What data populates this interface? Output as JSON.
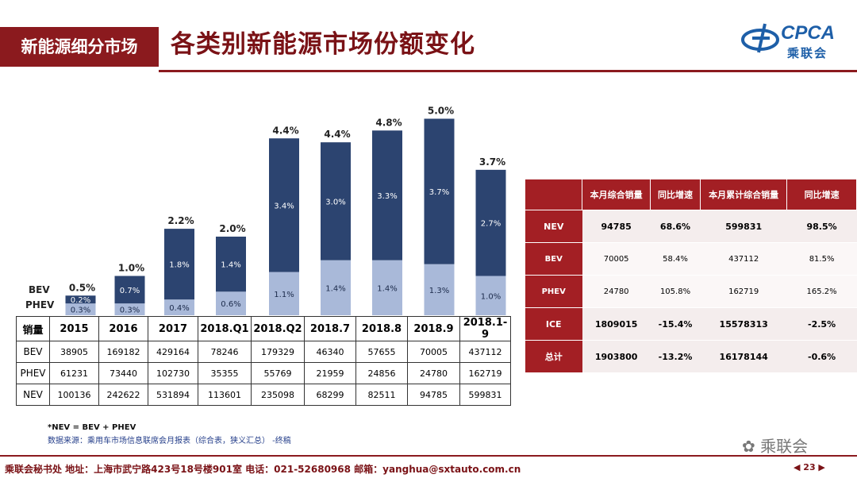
{
  "header": {
    "section": "新能源细分市场",
    "title": "各类别新能源市场份额变化",
    "logo_text": "CPCA",
    "logo_cn": "乘联会"
  },
  "chart_data": {
    "type": "bar",
    "stacked": true,
    "categories": [
      "2015",
      "2016",
      "2017",
      "2018.Q1",
      "2018.Q2",
      "2018.7",
      "2018.8",
      "2018.9",
      "2018.1-9"
    ],
    "series": [
      {
        "name": "PHEV",
        "values": [
          0.3,
          0.3,
          0.4,
          0.6,
          1.1,
          1.4,
          1.4,
          1.3,
          1.0
        ],
        "labels": [
          "0.3%",
          "0.3%",
          "0.4%",
          "0.6%",
          "1.1%",
          "1.4%",
          "1.4%",
          "1.3%",
          "1.0%"
        ],
        "color": "#a9b9d9"
      },
      {
        "name": "BEV",
        "values": [
          0.2,
          0.7,
          1.8,
          1.4,
          3.4,
          3.0,
          3.3,
          3.7,
          2.7
        ],
        "labels": [
          "0.2%",
          "0.7%",
          "1.8%",
          "1.4%",
          "3.4%",
          "3.0%",
          "3.3%",
          "3.7%",
          "2.7%"
        ],
        "color": "#2c4470"
      }
    ],
    "totals": [
      0.5,
      1.0,
      2.2,
      2.0,
      4.4,
      4.4,
      4.8,
      5.0,
      3.7
    ],
    "total_labels": [
      "0.5%",
      "1.0%",
      "2.2%",
      "2.0%",
      "4.4%",
      "4.4%",
      "4.8%",
      "5.0%",
      "3.7%"
    ],
    "legend_bev": "BEV",
    "legend_phev": "PHEV"
  },
  "volume_table": {
    "corner": "销量",
    "columns": [
      "2015",
      "2016",
      "2017",
      "2018.Q1",
      "2018.Q2",
      "2018.7",
      "2018.8",
      "2018.9",
      "2018.1-9"
    ],
    "rows": [
      {
        "label": "BEV",
        "values": [
          "38905",
          "169182",
          "429164",
          "78246",
          "179329",
          "46340",
          "57655",
          "70005",
          "437112"
        ]
      },
      {
        "label": "PHEV",
        "values": [
          "61231",
          "73440",
          "102730",
          "35355",
          "55769",
          "21959",
          "24856",
          "24780",
          "162719"
        ]
      },
      {
        "label": "NEV",
        "values": [
          "100136",
          "242622",
          "531894",
          "113601",
          "235098",
          "68299",
          "82511",
          "94785",
          "599831"
        ]
      }
    ]
  },
  "side_table": {
    "headers": [
      "",
      "本月综合销量",
      "同比增速",
      "本月累计综合销量",
      "同比增速"
    ],
    "rows": [
      {
        "label": "NEV",
        "values": [
          "94785",
          "68.6%",
          "599831",
          "98.5%"
        ],
        "bold": true
      },
      {
        "label": "BEV",
        "values": [
          "70005",
          "58.4%",
          "437112",
          "81.5%"
        ],
        "bold": false
      },
      {
        "label": "PHEV",
        "values": [
          "24780",
          "105.8%",
          "162719",
          "165.2%"
        ],
        "bold": false
      },
      {
        "label": "ICE",
        "values": [
          "1809015",
          "-15.4%",
          "15578313",
          "-2.5%"
        ],
        "bold": true
      },
      {
        "label": "总计",
        "values": [
          "1903800",
          "-13.2%",
          "16178144",
          "-0.6%"
        ],
        "bold": true
      }
    ]
  },
  "notes": {
    "formula": "*NEV = BEV + PHEV",
    "source": "数据来源：乘用车市场信息联席会月报表（综合表，狭义汇总） -终稿"
  },
  "watermark": "乘联会",
  "footer": {
    "text": "乘联会秘书处   地址：上海市武宁路423号18号楼901室  电话：021-52680968   邮箱：yanghua@sxtauto.com.cn",
    "page": "◀  23  ▶"
  },
  "colors": {
    "brand": "#8b1a1e",
    "bev": "#2c4470",
    "phev": "#a9b9d9"
  }
}
